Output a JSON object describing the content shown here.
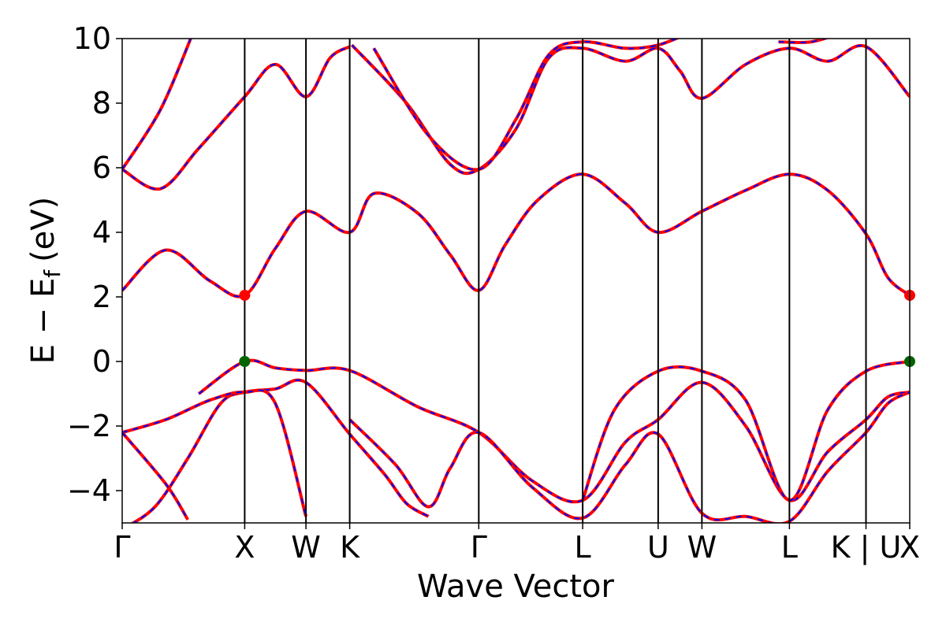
{
  "chart_data": {
    "type": "line",
    "title": "",
    "xlabel": "Wave Vector",
    "ylabel": {
      "main": "E − E",
      "subscript": "f",
      "unit": "(eV)"
    },
    "ylim": [
      -5,
      10
    ],
    "yticks": [
      -4,
      -2,
      0,
      2,
      4,
      6,
      8,
      10
    ],
    "ytick_labels": [
      "−4",
      "−2",
      "0",
      "2",
      "4",
      "6",
      "8",
      "10"
    ],
    "xlim": [
      0,
      7.2
    ],
    "kpoints": [
      {
        "label": "Γ",
        "x": 0.0
      },
      {
        "label": "X",
        "x": 1.12
      },
      {
        "label": "W",
        "x": 1.68
      },
      {
        "label": "K",
        "x": 2.08
      },
      {
        "label": "Γ",
        "x": 3.26
      },
      {
        "label": "L",
        "x": 4.21
      },
      {
        "label": "U",
        "x": 4.9
      },
      {
        "label": "W",
        "x": 5.3
      },
      {
        "label": "L",
        "x": 6.1
      },
      {
        "label": "K | U",
        "x": 6.8
      },
      {
        "label": "X",
        "x": 7.2
      }
    ],
    "series_styles": [
      {
        "color": "#ff0000",
        "style": "solid"
      },
      {
        "color": "#0000ff",
        "style": "dashed"
      }
    ],
    "bands": [
      [
        [
          0.0,
          -5.2
        ],
        [
          0.3,
          -4.5
        ],
        [
          0.6,
          -3.0
        ],
        [
          0.9,
          -1.3
        ],
        [
          1.12,
          -0.95
        ],
        [
          1.4,
          -0.85
        ],
        [
          1.68,
          -0.65
        ],
        [
          2.08,
          -2.25
        ],
        [
          2.4,
          -3.5
        ],
        [
          2.6,
          -4.4
        ],
        [
          2.8,
          -4.8
        ]
      ],
      [
        [
          0.0,
          -2.2
        ],
        [
          0.4,
          -1.8
        ],
        [
          0.8,
          -1.2
        ],
        [
          1.12,
          -0.95
        ],
        [
          1.4,
          -1.3
        ],
        [
          1.68,
          -4.8
        ]
      ],
      [
        [
          0.0,
          -2.2
        ],
        [
          0.4,
          -3.8
        ],
        [
          0.6,
          -4.9
        ]
      ],
      [
        [
          0.7,
          -1.0
        ],
        [
          1.12,
          0.0
        ],
        [
          1.4,
          -0.2
        ],
        [
          1.68,
          -0.28
        ],
        [
          2.08,
          -0.28
        ],
        [
          2.7,
          -1.4
        ],
        [
          3.26,
          -2.2
        ],
        [
          3.75,
          -3.7
        ],
        [
          4.21,
          -4.3
        ],
        [
          4.6,
          -2.5
        ],
        [
          4.9,
          -1.8
        ],
        [
          5.3,
          -0.65
        ],
        [
          5.7,
          -2.0
        ],
        [
          6.1,
          -4.3
        ],
        [
          6.45,
          -2.8
        ],
        [
          6.8,
          -1.8
        ],
        [
          7.0,
          -1.1
        ],
        [
          7.2,
          -0.95
        ]
      ],
      [
        [
          2.08,
          -1.8
        ],
        [
          2.5,
          -3.2
        ],
        [
          2.8,
          -4.5
        ],
        [
          3.0,
          -3.3
        ],
        [
          3.26,
          -2.2
        ],
        [
          3.75,
          -3.9
        ],
        [
          4.21,
          -4.85
        ],
        [
          4.6,
          -3.2
        ],
        [
          4.9,
          -2.25
        ],
        [
          5.3,
          -4.7
        ],
        [
          5.7,
          -4.8
        ],
        [
          6.1,
          -4.95
        ],
        [
          6.45,
          -3.4
        ],
        [
          6.8,
          -2.2
        ],
        [
          7.0,
          -1.3
        ],
        [
          7.2,
          -0.95
        ]
      ],
      [
        [
          4.21,
          -4.3
        ],
        [
          4.5,
          -1.5
        ],
        [
          4.9,
          -0.3
        ],
        [
          5.3,
          -0.3
        ],
        [
          5.7,
          -1.2
        ],
        [
          6.1,
          -4.3
        ],
        [
          6.45,
          -1.5
        ],
        [
          6.8,
          -0.3
        ],
        [
          7.2,
          0.0
        ]
      ],
      [
        [
          0.0,
          2.2
        ],
        [
          0.4,
          3.45
        ],
        [
          0.8,
          2.5
        ],
        [
          1.12,
          2.05
        ],
        [
          1.4,
          3.5
        ],
        [
          1.68,
          4.65
        ],
        [
          2.08,
          4.0
        ],
        [
          2.3,
          5.2
        ],
        [
          2.7,
          4.6
        ],
        [
          3.0,
          3.3
        ],
        [
          3.26,
          2.2
        ],
        [
          3.5,
          3.6
        ],
        [
          3.8,
          5.0
        ],
        [
          4.21,
          5.8
        ],
        [
          4.6,
          4.9
        ],
        [
          4.9,
          4.0
        ],
        [
          5.3,
          4.65
        ],
        [
          5.7,
          5.3
        ],
        [
          6.1,
          5.8
        ],
        [
          6.45,
          5.3
        ],
        [
          6.8,
          3.95
        ],
        [
          7.0,
          2.6
        ],
        [
          7.2,
          2.05
        ]
      ],
      [
        [
          0.0,
          5.95
        ],
        [
          0.35,
          5.35
        ],
        [
          0.7,
          6.6
        ],
        [
          1.12,
          8.2
        ],
        [
          1.4,
          9.2
        ],
        [
          1.68,
          8.2
        ],
        [
          1.9,
          9.4
        ],
        [
          2.08,
          9.75
        ]
      ],
      [
        [
          0.0,
          5.95
        ],
        [
          0.35,
          7.8
        ],
        [
          0.65,
          10.2
        ]
      ],
      [
        [
          2.1,
          9.8
        ],
        [
          2.6,
          8.0
        ],
        [
          3.0,
          6.1
        ],
        [
          3.26,
          5.95
        ],
        [
          3.6,
          7.2
        ],
        [
          3.9,
          9.4
        ],
        [
          4.21,
          9.7
        ],
        [
          4.6,
          9.3
        ],
        [
          4.9,
          9.7
        ],
        [
          5.1,
          9.0
        ],
        [
          5.3,
          8.15
        ],
        [
          5.7,
          9.2
        ],
        [
          6.1,
          9.7
        ],
        [
          6.45,
          9.3
        ],
        [
          6.8,
          9.75
        ],
        [
          7.2,
          8.2
        ]
      ],
      [
        [
          2.3,
          9.7
        ],
        [
          2.8,
          7.0
        ],
        [
          3.26,
          5.95
        ],
        [
          3.6,
          7.5
        ],
        [
          3.9,
          9.5
        ],
        [
          4.21,
          9.9
        ],
        [
          4.6,
          9.7
        ],
        [
          4.9,
          9.8
        ],
        [
          5.2,
          10.2
        ]
      ],
      [
        [
          6.0,
          9.9
        ],
        [
          6.3,
          9.9
        ],
        [
          6.6,
          10.2
        ]
      ]
    ],
    "vbm": {
      "x": [
        1.12,
        7.2
      ],
      "y": 0.0,
      "color": "#006400"
    },
    "cbm": {
      "x": [
        1.12,
        7.2
      ],
      "y": 2.05,
      "color": "#ff0000"
    }
  }
}
